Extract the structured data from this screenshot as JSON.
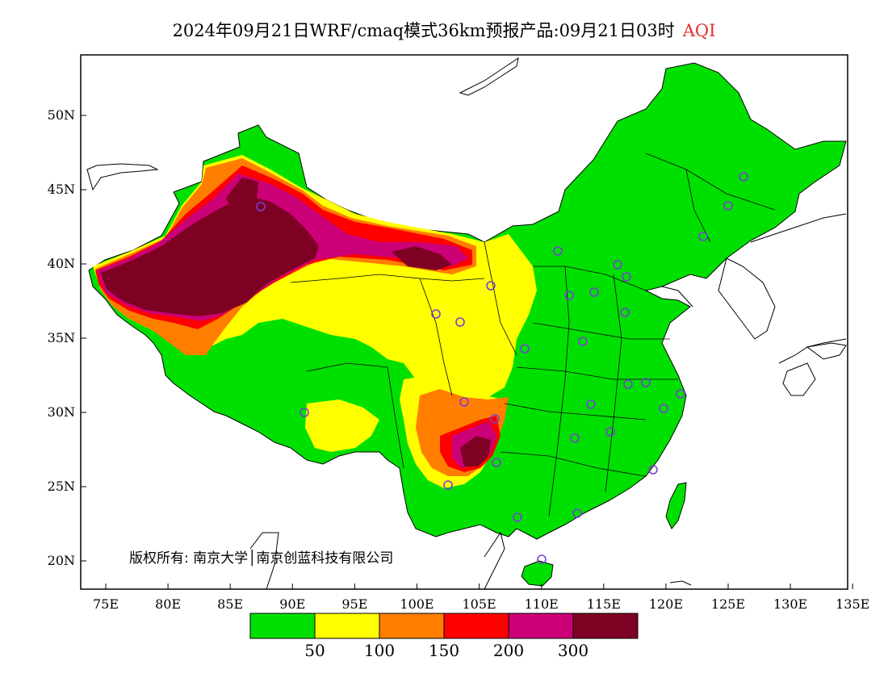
{
  "title": {
    "main": "2024年09月21日WRF/cmaq模式36km预报产品:09月21日03时",
    "variable": "AQI"
  },
  "axes": {
    "lon_ticks": [
      "75E",
      "80E",
      "85E",
      "90E",
      "95E",
      "100E",
      "105E",
      "110E",
      "115E",
      "120E",
      "125E",
      "130E",
      "135E"
    ],
    "lat_ticks": [
      "50N",
      "45N",
      "40N",
      "35N",
      "30N",
      "25N",
      "20N"
    ]
  },
  "copyright": "版权所有: 南京大学│南京创蓝科技有限公司",
  "legend": {
    "colors": [
      "#00e000",
      "#ffff00",
      "#ff7e00",
      "#ff0000",
      "#cc0077",
      "#7e0023"
    ],
    "labels": [
      "50",
      "100",
      "150",
      "200",
      "300"
    ]
  },
  "colors": {
    "good": "#00e000",
    "moderate": "#ffff00",
    "usg": "#ff7e00",
    "unhealthy": "#ff0000",
    "very_unhealthy": "#cc0077",
    "hazardous": "#7e0023",
    "station": "#7a3fd0"
  },
  "chart_data": {
    "type": "heatmap",
    "variable": "AQI",
    "lon_range": [
      73,
      135
    ],
    "lat_range": [
      18,
      54
    ],
    "thresholds": [
      50,
      100,
      150,
      200,
      300
    ]
  }
}
